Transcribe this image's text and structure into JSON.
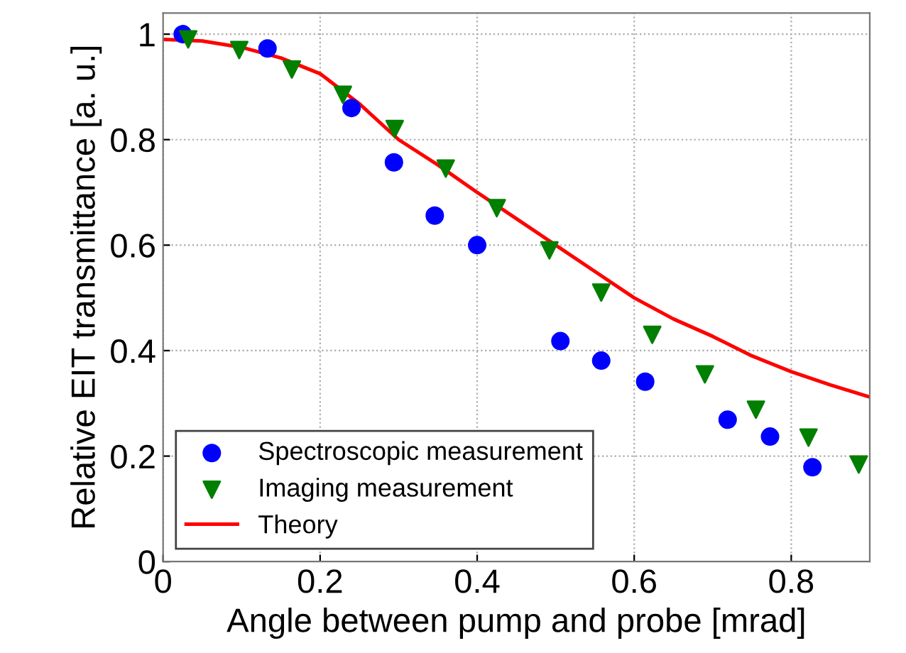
{
  "chart_data": {
    "type": "scatter",
    "xlabel": "Angle between pump and probe [mrad]",
    "ylabel": "Relative EIT transmittance [a. u.]",
    "xlim": [
      0,
      0.9
    ],
    "ylim": [
      0,
      1.04
    ],
    "xticks": [
      0,
      0.2,
      0.4,
      0.6,
      0.8
    ],
    "yticks": [
      0,
      0.2,
      0.4,
      0.6,
      0.8,
      1
    ],
    "grid": true,
    "legend": "bottom left",
    "series": [
      {
        "name": "Spectroscopic measurement",
        "marker": "circle",
        "color": "#0000ff",
        "x": [
          0.025,
          0.133,
          0.24,
          0.294,
          0.346,
          0.4,
          0.506,
          0.558,
          0.614,
          0.719,
          0.773,
          0.827
        ],
        "values": [
          1.0,
          0.973,
          0.86,
          0.757,
          0.656,
          0.6,
          0.418,
          0.381,
          0.341,
          0.269,
          0.237,
          0.179
        ]
      },
      {
        "name": "Imaging measurement",
        "marker": "triangle",
        "color": "#007f00",
        "x": [
          0.032,
          0.097,
          0.164,
          0.229,
          0.295,
          0.36,
          0.425,
          0.492,
          0.558,
          0.623,
          0.69,
          0.755,
          0.822,
          0.886
        ],
        "values": [
          0.99,
          0.97,
          0.933,
          0.885,
          0.82,
          0.745,
          0.67,
          0.59,
          0.51,
          0.43,
          0.355,
          0.288,
          0.235,
          0.184
        ]
      },
      {
        "name": "Theory",
        "type": "line",
        "color": "#ff0000",
        "x": [
          0,
          0.05,
          0.1,
          0.15,
          0.2,
          0.25,
          0.3,
          0.35,
          0.4,
          0.45,
          0.5,
          0.55,
          0.6,
          0.65,
          0.7,
          0.75,
          0.8,
          0.85,
          0.9
        ],
        "values": [
          0.99,
          0.987,
          0.975,
          0.955,
          0.925,
          0.868,
          0.8,
          0.752,
          0.7,
          0.65,
          0.6,
          0.55,
          0.5,
          0.46,
          0.427,
          0.39,
          0.36,
          0.335,
          0.312
        ]
      }
    ]
  }
}
